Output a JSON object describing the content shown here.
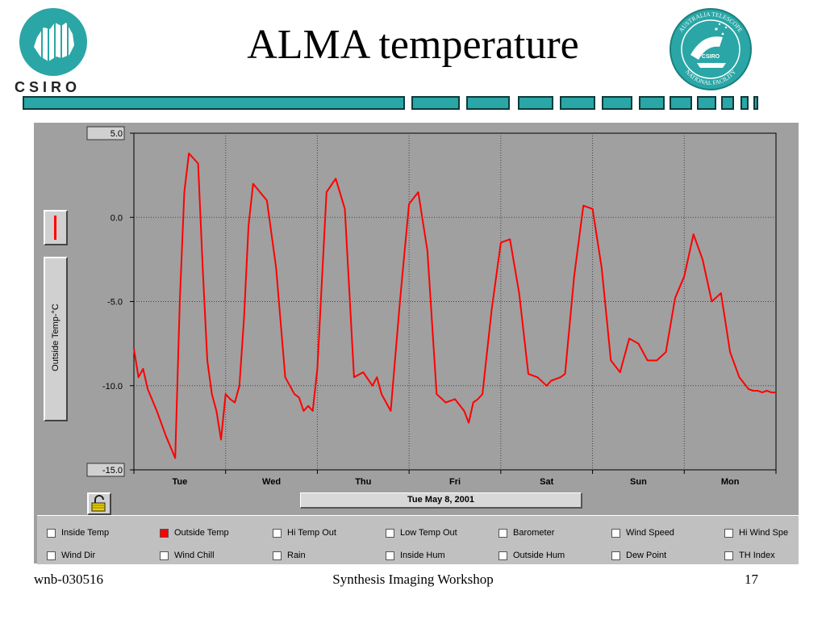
{
  "slide": {
    "title": "ALMA temperature",
    "csiro_logo_text": "CSIRO",
    "atnf_logo_texts": [
      "AUSTRALIA TELESCOPE",
      "NATIONAL FACILITY",
      "CSIRO"
    ],
    "accent_color": "#2aa6a6",
    "footer_left": "wnb-030516",
    "footer_center": "Synthesis Imaging Workshop",
    "footer_right": "17"
  },
  "app": {
    "y_axis_label": "Outside Temp-°C",
    "date_label": "Tue May 8, 2001",
    "series_color": "#ff0000",
    "checkboxes_row1": [
      {
        "label": "Inside Temp",
        "checked": false
      },
      {
        "label": "Outside Temp",
        "checked": true
      },
      {
        "label": "Hi Temp Out",
        "checked": false
      },
      {
        "label": "Low Temp Out",
        "checked": false
      },
      {
        "label": "Barometer",
        "checked": false
      },
      {
        "label": "Wind Speed",
        "checked": false
      },
      {
        "label": "Hi Wind Spe",
        "checked": false
      }
    ],
    "checkboxes_row2": [
      {
        "label": "Wind Dir",
        "checked": false
      },
      {
        "label": "Wind Chill",
        "checked": false
      },
      {
        "label": "Rain",
        "checked": false
      },
      {
        "label": "Inside Hum",
        "checked": false
      },
      {
        "label": "Outside Hum",
        "checked": false
      },
      {
        "label": "Dew Point",
        "checked": false
      },
      {
        "label": "TH Index",
        "checked": false
      }
    ]
  },
  "chart_data": {
    "type": "line",
    "title": "",
    "xlabel": "",
    "ylabel": "Outside Temp-°C",
    "ylim": [
      -15,
      5
    ],
    "y_ticks": [
      "5.0",
      "0.0",
      "-5.0",
      "-10.0",
      "-15.0"
    ],
    "x_ticks": [
      "Tue",
      "Wed",
      "Thu",
      "Fri",
      "Sat",
      "Sun",
      "Mon"
    ],
    "xlim_days": [
      0,
      7
    ],
    "grid": true,
    "series": [
      {
        "name": "Outside Temp",
        "x": [
          0.0,
          0.05,
          0.1,
          0.15,
          0.25,
          0.35,
          0.45,
          0.5,
          0.55,
          0.6,
          0.7,
          0.75,
          0.8,
          0.85,
          0.9,
          0.95,
          1.0,
          1.05,
          1.1,
          1.15,
          1.2,
          1.25,
          1.3,
          1.45,
          1.55,
          1.65,
          1.75,
          1.8,
          1.85,
          1.9,
          1.95,
          2.0,
          2.1,
          2.2,
          2.3,
          2.4,
          2.5,
          2.6,
          2.65,
          2.7,
          2.75,
          2.8,
          2.9,
          3.0,
          3.1,
          3.2,
          3.3,
          3.4,
          3.5,
          3.6,
          3.65,
          3.7,
          3.75,
          3.8,
          3.9,
          4.0,
          4.1,
          4.2,
          4.3,
          4.4,
          4.5,
          4.55,
          4.6,
          4.65,
          4.7,
          4.8,
          4.9,
          5.0,
          5.1,
          5.2,
          5.3,
          5.4,
          5.5,
          5.6,
          5.7,
          5.8,
          5.9,
          6.0,
          6.1,
          6.2,
          6.3,
          6.4,
          6.5,
          6.6,
          6.7,
          6.75,
          6.8,
          6.85,
          6.9,
          6.95,
          7.0
        ],
        "y": [
          -7.8,
          -9.5,
          -9.0,
          -10.2,
          -11.5,
          -13.0,
          -14.3,
          -5.0,
          1.5,
          3.8,
          3.2,
          -3.0,
          -8.5,
          -10.5,
          -11.5,
          -13.2,
          -10.5,
          -10.8,
          -11.0,
          -10.0,
          -6.0,
          -0.5,
          2.0,
          1.0,
          -3.0,
          -9.5,
          -10.5,
          -10.7,
          -11.5,
          -11.2,
          -11.5,
          -9.0,
          1.5,
          2.3,
          0.5,
          -9.5,
          -9.2,
          -10.0,
          -9.5,
          -10.5,
          -11.0,
          -11.5,
          -5.0,
          0.8,
          1.5,
          -2.0,
          -10.5,
          -11.0,
          -10.8,
          -11.5,
          -12.2,
          -11.0,
          -10.8,
          -10.5,
          -5.5,
          -1.5,
          -1.3,
          -4.5,
          -9.3,
          -9.5,
          -10.0,
          -9.7,
          -9.6,
          -9.5,
          -9.3,
          -3.5,
          0.7,
          0.5,
          -3.0,
          -8.5,
          -9.2,
          -7.2,
          -7.5,
          -8.5,
          -8.5,
          -8.0,
          -4.8,
          -3.5,
          -1.0,
          -2.5,
          -5.0,
          -4.5,
          -8.0,
          -9.5,
          -10.2,
          -10.3,
          -10.3,
          -10.4,
          -10.3,
          -10.4,
          -10.4
        ]
      }
    ]
  }
}
